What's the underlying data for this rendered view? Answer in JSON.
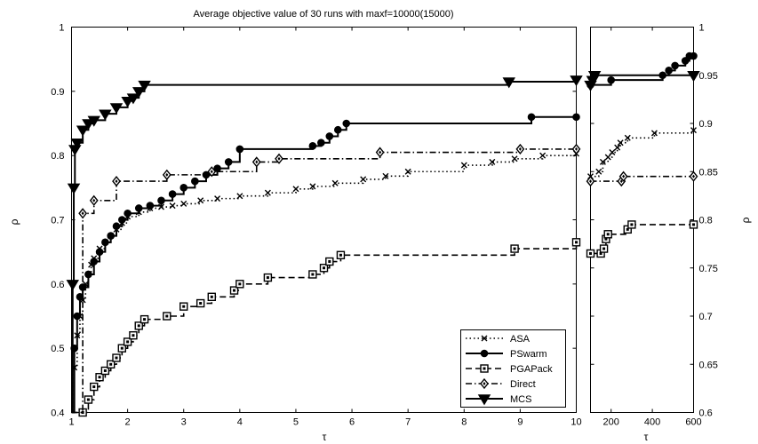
{
  "chart_data": [
    {
      "type": "line",
      "title": "Average objective value of 30 runs with maxf=10000(15000)",
      "xlabel": "τ",
      "ylabel": "ρ",
      "xlim": [
        1,
        10
      ],
      "ylim": [
        0.4,
        1
      ],
      "xticks": [
        "1",
        "2",
        "3",
        "4",
        "5",
        "6",
        "7",
        "8",
        "9",
        "10"
      ],
      "yticks": [
        "0.4",
        "0.5",
        "0.6",
        "0.7",
        "0.8",
        "0.9",
        "1"
      ],
      "grid": false,
      "legend_position": "bottom-right",
      "series": [
        {
          "name": "ASA",
          "line_style": "dotted",
          "marker": "x",
          "points": [
            [
              1.0,
              0.4
            ],
            [
              1.05,
              0.47
            ],
            [
              1.1,
              0.52
            ],
            [
              1.15,
              0.55
            ],
            [
              1.2,
              0.575
            ],
            [
              1.25,
              0.6
            ],
            [
              1.3,
              0.615
            ],
            [
              1.35,
              0.63
            ],
            [
              1.4,
              0.64
            ],
            [
              1.5,
              0.655
            ],
            [
              1.6,
              0.665
            ],
            [
              1.7,
              0.675
            ],
            [
              1.8,
              0.685
            ],
            [
              1.9,
              0.695
            ],
            [
              2.0,
              0.705
            ],
            [
              2.2,
              0.712
            ],
            [
              2.4,
              0.718
            ],
            [
              2.6,
              0.72
            ],
            [
              2.8,
              0.722
            ],
            [
              3.0,
              0.725
            ],
            [
              3.3,
              0.73
            ],
            [
              3.6,
              0.733
            ],
            [
              4.0,
              0.737
            ],
            [
              4.5,
              0.742
            ],
            [
              5.0,
              0.748
            ],
            [
              5.3,
              0.752
            ],
            [
              5.7,
              0.757
            ],
            [
              6.2,
              0.763
            ],
            [
              6.6,
              0.768
            ],
            [
              7.0,
              0.775
            ],
            [
              8.0,
              0.785
            ],
            [
              8.5,
              0.79
            ],
            [
              8.9,
              0.795
            ],
            [
              9.4,
              0.8
            ],
            [
              10.0,
              0.803
            ]
          ]
        },
        {
          "name": "PSwarm",
          "line_style": "solid",
          "marker": "circle",
          "points": [
            [
              1.0,
              0.4
            ],
            [
              1.05,
              0.5
            ],
            [
              1.1,
              0.55
            ],
            [
              1.15,
              0.58
            ],
            [
              1.2,
              0.595
            ],
            [
              1.3,
              0.615
            ],
            [
              1.4,
              0.635
            ],
            [
              1.5,
              0.65
            ],
            [
              1.6,
              0.665
            ],
            [
              1.7,
              0.675
            ],
            [
              1.8,
              0.69
            ],
            [
              1.9,
              0.7
            ],
            [
              2.0,
              0.71
            ],
            [
              2.2,
              0.718
            ],
            [
              2.4,
              0.722
            ],
            [
              2.6,
              0.73
            ],
            [
              2.8,
              0.74
            ],
            [
              3.0,
              0.75
            ],
            [
              3.2,
              0.76
            ],
            [
              3.4,
              0.77
            ],
            [
              3.6,
              0.78
            ],
            [
              3.8,
              0.79
            ],
            [
              4.0,
              0.81
            ],
            [
              5.3,
              0.815
            ],
            [
              5.45,
              0.82
            ],
            [
              5.6,
              0.83
            ],
            [
              5.75,
              0.84
            ],
            [
              5.9,
              0.85
            ],
            [
              9.2,
              0.86
            ],
            [
              10.0,
              0.86
            ]
          ]
        },
        {
          "name": "PGAPack",
          "line_style": "dashed",
          "marker": "square",
          "points": [
            [
              1.0,
              0.4
            ],
            [
              1.2,
              0.4
            ],
            [
              1.3,
              0.42
            ],
            [
              1.4,
              0.44
            ],
            [
              1.5,
              0.455
            ],
            [
              1.6,
              0.465
            ],
            [
              1.7,
              0.475
            ],
            [
              1.8,
              0.485
            ],
            [
              1.9,
              0.5
            ],
            [
              2.0,
              0.51
            ],
            [
              2.1,
              0.52
            ],
            [
              2.2,
              0.535
            ],
            [
              2.3,
              0.545
            ],
            [
              2.7,
              0.55
            ],
            [
              3.0,
              0.565
            ],
            [
              3.3,
              0.57
            ],
            [
              3.5,
              0.58
            ],
            [
              3.9,
              0.59
            ],
            [
              4.0,
              0.6
            ],
            [
              4.5,
              0.61
            ],
            [
              5.3,
              0.615
            ],
            [
              5.5,
              0.625
            ],
            [
              5.6,
              0.635
            ],
            [
              5.8,
              0.645
            ],
            [
              8.9,
              0.655
            ],
            [
              10.0,
              0.665
            ]
          ]
        },
        {
          "name": "Direct",
          "line_style": "dash-dot",
          "marker": "diamond",
          "points": [
            [
              1.0,
              0.4
            ],
            [
              1.2,
              0.71
            ],
            [
              1.4,
              0.73
            ],
            [
              1.8,
              0.76
            ],
            [
              2.7,
              0.77
            ],
            [
              3.5,
              0.775
            ],
            [
              4.3,
              0.79
            ],
            [
              4.7,
              0.795
            ],
            [
              6.5,
              0.805
            ],
            [
              9.0,
              0.81
            ],
            [
              10.0,
              0.81
            ]
          ]
        },
        {
          "name": "MCS",
          "line_style": "solid",
          "marker": "triangle-down",
          "points": [
            [
              1.0,
              0.4
            ],
            [
              1.02,
              0.6
            ],
            [
              1.04,
              0.75
            ],
            [
              1.06,
              0.81
            ],
            [
              1.1,
              0.82
            ],
            [
              1.2,
              0.84
            ],
            [
              1.3,
              0.85
            ],
            [
              1.4,
              0.855
            ],
            [
              1.6,
              0.865
            ],
            [
              1.8,
              0.875
            ],
            [
              2.0,
              0.885
            ],
            [
              2.1,
              0.89
            ],
            [
              2.2,
              0.9
            ],
            [
              2.3,
              0.91
            ],
            [
              8.8,
              0.915
            ],
            [
              10.0,
              0.918
            ]
          ]
        }
      ]
    },
    {
      "type": "line",
      "xlabel": "τ",
      "ylabel": "ρ",
      "xlim": [
        100,
        600
      ],
      "ylim": [
        0.6,
        1
      ],
      "xticks": [
        "200",
        "400",
        "600"
      ],
      "yticks": [
        "0.6",
        "0.65",
        "0.7",
        "0.75",
        "0.8",
        "0.85",
        "0.9",
        "0.95",
        "1"
      ],
      "grid": false,
      "series": [
        {
          "name": "ASA",
          "line_style": "dotted",
          "marker": "x",
          "points": [
            [
              100,
              0.845
            ],
            [
              140,
              0.85
            ],
            [
              160,
              0.86
            ],
            [
              185,
              0.865
            ],
            [
              205,
              0.87
            ],
            [
              230,
              0.875
            ],
            [
              245,
              0.88
            ],
            [
              280,
              0.885
            ],
            [
              410,
              0.89
            ],
            [
              600,
              0.893
            ]
          ]
        },
        {
          "name": "PSwarm",
          "line_style": "solid",
          "marker": "circle",
          "points": [
            [
              100,
              0.94
            ],
            [
              200,
              0.945
            ],
            [
              450,
              0.95
            ],
            [
              480,
              0.955
            ],
            [
              510,
              0.96
            ],
            [
              560,
              0.965
            ],
            [
              580,
              0.97
            ],
            [
              600,
              0.97
            ]
          ]
        },
        {
          "name": "PGAPack",
          "line_style": "dashed",
          "marker": "square",
          "points": [
            [
              100,
              0.765
            ],
            [
              150,
              0.765
            ],
            [
              165,
              0.77
            ],
            [
              175,
              0.78
            ],
            [
              185,
              0.785
            ],
            [
              280,
              0.79
            ],
            [
              300,
              0.795
            ],
            [
              600,
              0.795
            ]
          ]
        },
        {
          "name": "Direct",
          "line_style": "dash-dot",
          "marker": "diamond",
          "points": [
            [
              100,
              0.84
            ],
            [
              250,
              0.84
            ],
            [
              260,
              0.845
            ],
            [
              600,
              0.845
            ]
          ]
        },
        {
          "name": "MCS",
          "line_style": "solid",
          "marker": "triangle-down",
          "points": [
            [
              100,
              0.94
            ],
            [
              110,
              0.945
            ],
            [
              120,
              0.95
            ],
            [
              600,
              0.95
            ]
          ]
        }
      ]
    }
  ],
  "legend": {
    "items": [
      {
        "label": "ASA",
        "line_style": "dotted",
        "marker": "x"
      },
      {
        "label": "PSwarm",
        "line_style": "solid",
        "marker": "circle"
      },
      {
        "label": "PGAPack",
        "line_style": "dashed",
        "marker": "square"
      },
      {
        "label": "Direct",
        "line_style": "dash-dot",
        "marker": "diamond"
      },
      {
        "label": "MCS",
        "line_style": "solid",
        "marker": "triangle-down"
      }
    ]
  }
}
